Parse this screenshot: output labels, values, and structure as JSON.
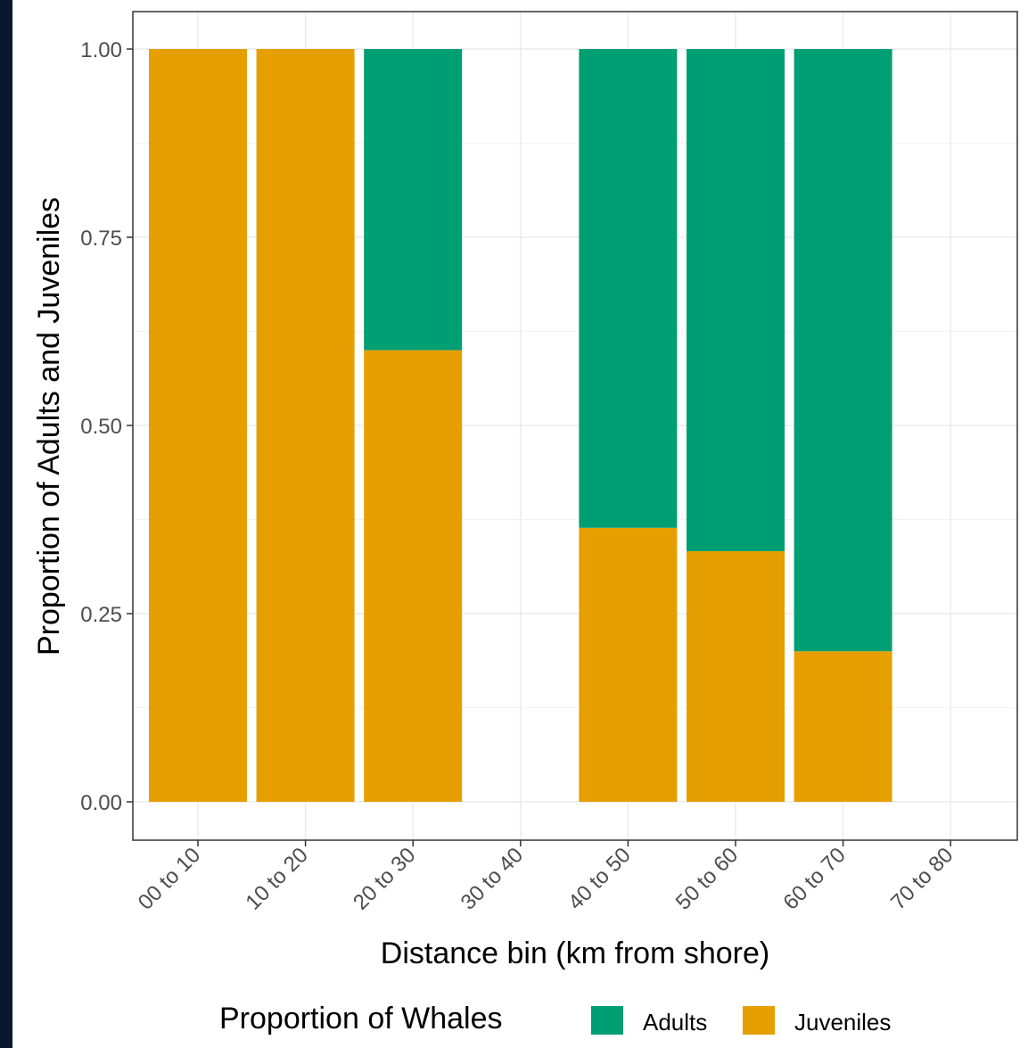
{
  "chart_data": {
    "type": "bar",
    "stacked": true,
    "categories": [
      "00 to 10",
      "10 to 20",
      "20 to 30",
      "30 to 40",
      "40 to 50",
      "50 to 60",
      "60 to 70",
      "70 to 80"
    ],
    "series": [
      {
        "name": "Juveniles",
        "color": "#E69F00",
        "values": [
          1.0,
          1.0,
          0.6,
          null,
          0.364,
          0.333,
          0.2,
          null
        ]
      },
      {
        "name": "Adults",
        "color": "#009E73",
        "values": [
          0.0,
          0.0,
          0.4,
          null,
          0.636,
          0.667,
          0.8,
          null
        ]
      }
    ],
    "xlabel": "Distance bin (km from shore)",
    "ylabel": "Proportion of Adults and Juveniles",
    "ylim": [
      0,
      1
    ],
    "yticks": [
      "0.00",
      "0.25",
      "0.50",
      "0.75",
      "1.00"
    ],
    "grid": true,
    "legend": {
      "title": "Proportion of Whales",
      "position": "bottom",
      "entries": [
        "Adults",
        "Juveniles"
      ]
    }
  }
}
